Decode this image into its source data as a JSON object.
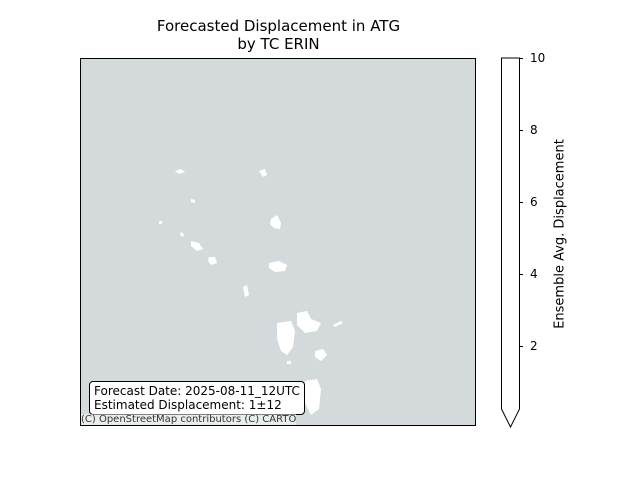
{
  "title": {
    "line1": "Forecasted Displacement in ATG",
    "line2": "by TC ERIN"
  },
  "map": {
    "background_color": "#d4dadc",
    "land_color": "#ffffff",
    "info": {
      "forecast_date": "Forecast Date: 2025-08-11_12UTC",
      "estimated_displacement": "Estimated Displacement: 1±12"
    },
    "attribution": "(C) OpenStreetMap contributors (C) CARTO"
  },
  "colorbar": {
    "label": "Ensemble Avg. Displacement",
    "ticks": [
      "10",
      "8",
      "6",
      "4",
      "2"
    ],
    "extend": "min",
    "range": [
      0,
      10
    ]
  }
}
